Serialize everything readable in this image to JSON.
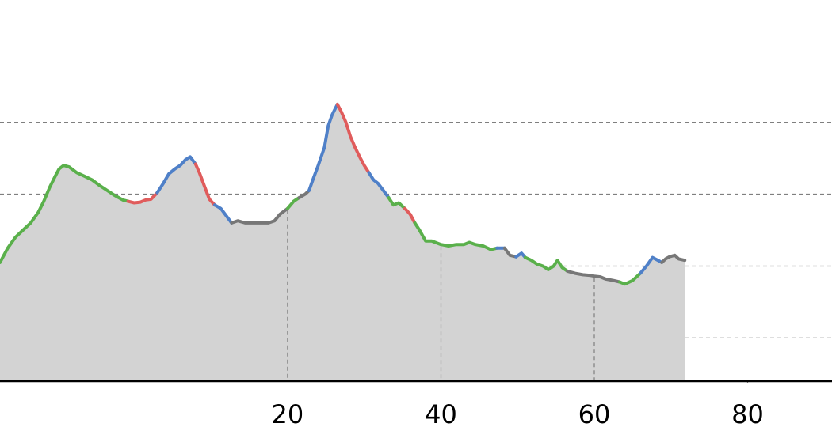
{
  "chart_data": {
    "type": "area",
    "title": "",
    "xlabel": "",
    "ylabel": "",
    "xlim": [
      -17.5,
      91
    ],
    "ylim": [
      0,
      53
    ],
    "x_ticks": [
      20,
      40,
      60,
      80
    ],
    "x_tick_labels": [
      "20",
      "40",
      "60",
      "80"
    ],
    "y_gridlines": [
      6,
      16,
      26,
      36
    ],
    "grid": true,
    "legend": "none",
    "colors": {
      "fill": "#d3d3d3",
      "grid": "#7f7f7f",
      "axis": "#000000",
      "green": "#5ab04b",
      "red": "#e05c5c",
      "blue": "#4f80c8",
      "gray": "#777777"
    },
    "points": [
      [
        -17.5,
        16.5
      ],
      [
        -16.5,
        18.5
      ],
      [
        -15.5,
        20.0
      ],
      [
        -14.5,
        21.0
      ],
      [
        -13.5,
        22.0
      ],
      [
        -12.5,
        23.5
      ],
      [
        -11.8,
        25.0
      ],
      [
        -11.0,
        27.0
      ],
      [
        -10.3,
        28.5
      ],
      [
        -9.8,
        29.5
      ],
      [
        -9.2,
        30.0
      ],
      [
        -8.5,
        29.8
      ],
      [
        -7.5,
        29.0
      ],
      [
        -6.5,
        28.5
      ],
      [
        -5.5,
        28.0
      ],
      [
        -4.5,
        27.2
      ],
      [
        -3.5,
        26.5
      ],
      [
        -2.5,
        25.8
      ],
      [
        -1.5,
        25.2
      ],
      [
        -0.8,
        25.0
      ],
      [
        0.0,
        24.8
      ],
      [
        0.8,
        24.9
      ],
      [
        1.5,
        25.2
      ],
      [
        2.2,
        25.3
      ],
      [
        3.0,
        26.2
      ],
      [
        3.8,
        27.5
      ],
      [
        4.5,
        28.8
      ],
      [
        5.3,
        29.5
      ],
      [
        6.0,
        30.0
      ],
      [
        6.7,
        30.8
      ],
      [
        7.3,
        31.2
      ],
      [
        8.0,
        30.2
      ],
      [
        8.5,
        29.0
      ],
      [
        9.2,
        27.0
      ],
      [
        9.8,
        25.3
      ],
      [
        10.5,
        24.5
      ],
      [
        11.3,
        24.0
      ],
      [
        12.0,
        23.0
      ],
      [
        12.7,
        22.0
      ],
      [
        13.5,
        22.3
      ],
      [
        14.5,
        22.0
      ],
      [
        16.0,
        22.0
      ],
      [
        17.5,
        22.0
      ],
      [
        18.3,
        22.3
      ],
      [
        19.0,
        23.2
      ],
      [
        20.0,
        24.0
      ],
      [
        20.8,
        25.0
      ],
      [
        21.5,
        25.5
      ],
      [
        22.3,
        26.0
      ],
      [
        22.8,
        26.5
      ],
      [
        23.3,
        28.0
      ],
      [
        24.0,
        30.0
      ],
      [
        24.8,
        32.5
      ],
      [
        25.3,
        35.5
      ],
      [
        25.8,
        37.0
      ],
      [
        26.5,
        38.5
      ],
      [
        27.0,
        37.5
      ],
      [
        27.6,
        36.0
      ],
      [
        28.2,
        34.0
      ],
      [
        28.8,
        32.5
      ],
      [
        29.5,
        31.0
      ],
      [
        30.0,
        30.0
      ],
      [
        30.6,
        29.0
      ],
      [
        31.2,
        28.0
      ],
      [
        31.8,
        27.5
      ],
      [
        32.5,
        26.5
      ],
      [
        33.2,
        25.5
      ],
      [
        33.8,
        24.5
      ],
      [
        34.5,
        24.8
      ],
      [
        35.3,
        24.0
      ],
      [
        36.0,
        23.2
      ],
      [
        36.6,
        22.0
      ],
      [
        37.2,
        21.0
      ],
      [
        38.0,
        19.5
      ],
      [
        38.8,
        19.5
      ],
      [
        40.0,
        19.0
      ],
      [
        41.0,
        18.8
      ],
      [
        42.0,
        19.0
      ],
      [
        43.0,
        19.0
      ],
      [
        43.7,
        19.3
      ],
      [
        44.5,
        19.0
      ],
      [
        45.5,
        18.8
      ],
      [
        46.5,
        18.3
      ],
      [
        47.3,
        18.5
      ],
      [
        48.3,
        18.5
      ],
      [
        49.0,
        17.5
      ],
      [
        49.8,
        17.3
      ],
      [
        50.5,
        17.8
      ],
      [
        51.0,
        17.2
      ],
      [
        51.8,
        16.8
      ],
      [
        52.5,
        16.3
      ],
      [
        53.3,
        16.0
      ],
      [
        54.0,
        15.5
      ],
      [
        54.7,
        16.0
      ],
      [
        55.2,
        16.8
      ],
      [
        55.8,
        15.8
      ],
      [
        56.5,
        15.3
      ],
      [
        57.5,
        15.0
      ],
      [
        58.5,
        14.8
      ],
      [
        59.5,
        14.7
      ],
      [
        60.0,
        14.6
      ],
      [
        60.8,
        14.5
      ],
      [
        61.5,
        14.2
      ],
      [
        62.5,
        14.0
      ],
      [
        63.3,
        13.8
      ],
      [
        64.0,
        13.5
      ],
      [
        65.0,
        14.0
      ],
      [
        66.0,
        15.0
      ],
      [
        66.8,
        16.0
      ],
      [
        67.6,
        17.2
      ],
      [
        68.3,
        16.8
      ],
      [
        68.8,
        16.5
      ],
      [
        69.3,
        17.0
      ],
      [
        69.8,
        17.3
      ],
      [
        70.5,
        17.5
      ],
      [
        71.0,
        17.0
      ],
      [
        71.8,
        16.8
      ]
    ],
    "segments": [
      {
        "color": "green",
        "from": 0,
        "to": 8
      },
      {
        "color": "green",
        "from": 8,
        "to": 19
      },
      {
        "color": "red",
        "from": 19,
        "to": 24
      },
      {
        "color": "blue",
        "from": 24,
        "to": 31
      },
      {
        "color": "red",
        "from": 31,
        "to": 35
      },
      {
        "color": "blue",
        "from": 35,
        "to": 38
      },
      {
        "color": "gray",
        "from": 38,
        "to": 45
      },
      {
        "color": "green",
        "from": 45,
        "to": 47
      },
      {
        "color": "gray",
        "from": 47,
        "to": 49
      },
      {
        "color": "blue",
        "from": 49,
        "to": 55
      },
      {
        "color": "red",
        "from": 55,
        "to": 62
      },
      {
        "color": "blue",
        "from": 62,
        "to": 66
      },
      {
        "color": "green",
        "from": 66,
        "to": 69
      },
      {
        "color": "red",
        "from": 69,
        "to": 71
      },
      {
        "color": "green",
        "from": 71,
        "to": 83
      },
      {
        "color": "blue",
        "from": 83,
        "to": 84
      },
      {
        "color": "gray",
        "from": 84,
        "to": 86
      },
      {
        "color": "blue",
        "from": 86,
        "to": 88
      },
      {
        "color": "green",
        "from": 88,
        "to": 96
      },
      {
        "color": "gray",
        "from": 96,
        "to": 104
      },
      {
        "color": "green",
        "from": 104,
        "to": 107
      },
      {
        "color": "blue",
        "from": 107,
        "to": 111
      },
      {
        "color": "gray",
        "from": 111,
        "to": 117
      }
    ]
  }
}
